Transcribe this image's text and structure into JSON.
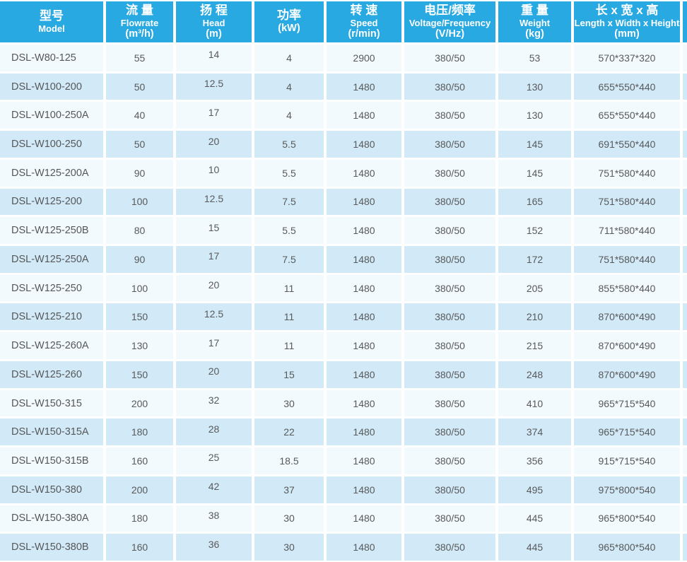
{
  "colors": {
    "header_bg": "#29a9e2",
    "header_text": "#ffffff",
    "row_odd": "#f3fafd",
    "row_even": "#d2eaf7",
    "gap": "#ffffff",
    "body_text": "#58595b"
  },
  "table": {
    "columns": [
      {
        "key": "model",
        "zh": "型号",
        "en": "Model",
        "unit": ""
      },
      {
        "key": "flowrate",
        "zh": "流 量",
        "en": "Flowrate",
        "unit": "(m³/h)"
      },
      {
        "key": "head",
        "zh": "扬 程",
        "en": "Head",
        "unit": "(m)"
      },
      {
        "key": "power",
        "zh": "功率",
        "en": "",
        "unit": "(kW)"
      },
      {
        "key": "speed",
        "zh": "转 速",
        "en": "Speed",
        "unit": "(r/min)"
      },
      {
        "key": "voltage-frequency",
        "zh": "电压/频率",
        "en": "Voltage/Frequency",
        "unit": "(V/Hz)"
      },
      {
        "key": "weight",
        "zh": "重 量",
        "en": "Weight",
        "unit": "(kg)"
      },
      {
        "key": "dimensions",
        "zh": "长 x 宽 x 高",
        "en": "Length x Width x Height",
        "unit": "(mm)"
      }
    ],
    "rows": [
      [
        "DSL-W80-125",
        "55",
        "14",
        "4",
        "2900",
        "380/50",
        "53",
        "570*337*320"
      ],
      [
        "DSL-W100-200",
        "50",
        "12.5",
        "4",
        "1480",
        "380/50",
        "130",
        "655*550*440"
      ],
      [
        "DSL-W100-250A",
        "40",
        "17",
        "4",
        "1480",
        "380/50",
        "130",
        "655*550*440"
      ],
      [
        "DSL-W100-250",
        "50",
        "20",
        "5.5",
        "1480",
        "380/50",
        "145",
        "691*550*440"
      ],
      [
        "DSL-W125-200A",
        "90",
        "10",
        "5.5",
        "1480",
        "380/50",
        "145",
        "751*580*440"
      ],
      [
        "DSL-W125-200",
        "100",
        "12.5",
        "7.5",
        "1480",
        "380/50",
        "165",
        "751*580*440"
      ],
      [
        "DSL-W125-250B",
        "80",
        "15",
        "5.5",
        "1480",
        "380/50",
        "152",
        "711*580*440"
      ],
      [
        "DSL-W125-250A",
        "90",
        "17",
        "7.5",
        "1480",
        "380/50",
        "172",
        "751*580*440"
      ],
      [
        "DSL-W125-250",
        "100",
        "20",
        "11",
        "1480",
        "380/50",
        "205",
        "855*580*440"
      ],
      [
        "DSL-W125-210",
        "150",
        "12.5",
        "11",
        "1480",
        "380/50",
        "210",
        "870*600*490"
      ],
      [
        "DSL-W125-260A",
        "130",
        "17",
        "11",
        "1480",
        "380/50",
        "215",
        "870*600*490"
      ],
      [
        "DSL-W125-260",
        "150",
        "20",
        "15",
        "1480",
        "380/50",
        "248",
        "870*600*490"
      ],
      [
        "DSL-W150-315",
        "200",
        "32",
        "30",
        "1480",
        "380/50",
        "410",
        "965*715*540"
      ],
      [
        "DSL-W150-315A",
        "180",
        "28",
        "22",
        "1480",
        "380/50",
        "374",
        "965*715*540"
      ],
      [
        "DSL-W150-315B",
        "160",
        "25",
        "18.5",
        "1480",
        "380/50",
        "356",
        "915*715*540"
      ],
      [
        "DSL-W150-380",
        "200",
        "42",
        "37",
        "1480",
        "380/50",
        "495",
        "975*800*540"
      ],
      [
        "DSL-W150-380A",
        "180",
        "38",
        "30",
        "1480",
        "380/50",
        "445",
        "965*800*540"
      ],
      [
        "DSL-W150-380B",
        "160",
        "36",
        "30",
        "1480",
        "380/50",
        "445",
        "965*800*540"
      ]
    ]
  }
}
